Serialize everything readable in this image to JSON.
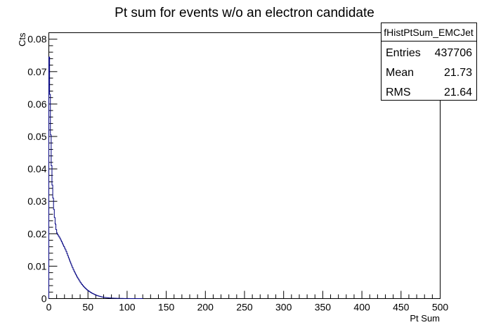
{
  "chart_data": {
    "type": "line",
    "title": "Pt sum for events w/o an electron candidate",
    "xlabel": "Pt Sum",
    "ylabel": "Cts",
    "xlim": [
      0,
      500
    ],
    "ylim": [
      0,
      0.082
    ],
    "xticks": [
      "0",
      "50",
      "100",
      "150",
      "200",
      "250",
      "300",
      "350",
      "400",
      "450",
      "500"
    ],
    "yticks": [
      "0",
      "0.01",
      "0.02",
      "0.03",
      "0.04",
      "0.05",
      "0.06",
      "0.07",
      "0.08"
    ],
    "grid": false,
    "line_color": "#000080",
    "stats_box": {
      "name": "fHistPtSum_EMCJet",
      "rows": [
        {
          "label": "Entries",
          "value": "437706"
        },
        {
          "label": "Mean",
          "value": "21.73"
        },
        {
          "label": "RMS",
          "value": "21.64"
        }
      ]
    },
    "series": [
      {
        "x": [
          0,
          1,
          2,
          3,
          4,
          5,
          6,
          7,
          8,
          9,
          10,
          12,
          14,
          16,
          18,
          20,
          22,
          24,
          26,
          28,
          30,
          32,
          34,
          36,
          38,
          40,
          42,
          44,
          46,
          48,
          50,
          55,
          60,
          65,
          70,
          75,
          80,
          85,
          90,
          95,
          100,
          105,
          110,
          115,
          120
        ],
        "values": [
          0.079,
          0.07,
          0.056,
          0.045,
          0.037,
          0.033,
          0.029,
          0.026,
          0.024,
          0.022,
          0.0205,
          0.0195,
          0.0188,
          0.0178,
          0.0168,
          0.0158,
          0.0148,
          0.0135,
          0.0122,
          0.011,
          0.0098,
          0.0087,
          0.0077,
          0.0068,
          0.006,
          0.0052,
          0.0045,
          0.0039,
          0.0034,
          0.0029,
          0.0025,
          0.0017,
          0.0011,
          0.0007,
          0.0004,
          0.00025,
          0.00015,
          0.0001,
          6e-05,
          4e-05,
          2e-05,
          1e-05,
          5e-06,
          2e-06,
          0
        ]
      }
    ]
  }
}
